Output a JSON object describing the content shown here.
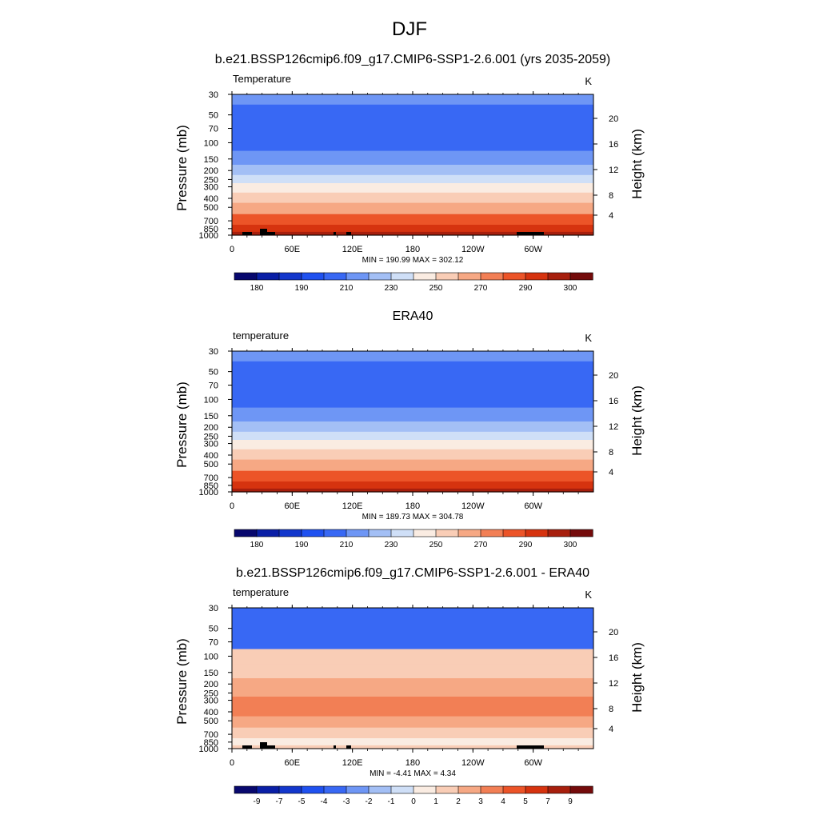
{
  "figure_title": "DJF",
  "chart_data": [
    {
      "type": "heatmap",
      "title": "b.e21.BSSP126cmip6.f09_g17.CMIP6-SSP1-2.6.001 (yrs 2035-2059)",
      "left_string": "Temperature",
      "units": "K",
      "ylabel": "Pressure (mb)",
      "ylabel_right": "Height (km)",
      "yticks": [
        "30",
        "50",
        "70",
        "100",
        "150",
        "200",
        "250",
        "300",
        "400",
        "500",
        "700",
        "850",
        "1000"
      ],
      "xticks": [
        "0",
        "60E",
        "120E",
        "180",
        "120W",
        "60W"
      ],
      "right_ticks": [
        "20",
        "16",
        "12",
        "8",
        "4"
      ],
      "stats": "MIN = 190.99  MAX = 302.12",
      "colorbar_labels": [
        "180",
        "190",
        "210",
        "230",
        "250",
        "270",
        "290",
        "300"
      ],
      "profile": [
        {
          "p": 30,
          "level": 210
        },
        {
          "p": 50,
          "level": 200
        },
        {
          "p": 70,
          "level": 200
        },
        {
          "p": 100,
          "level": 200
        },
        {
          "p": 150,
          "level": 210
        },
        {
          "p": 200,
          "level": 220
        },
        {
          "p": 250,
          "level": 230
        },
        {
          "p": 300,
          "level": 240
        },
        {
          "p": 400,
          "level": 255
        },
        {
          "p": 500,
          "level": 265
        },
        {
          "p": 700,
          "level": 280
        },
        {
          "p": 850,
          "level": 290
        },
        {
          "p": 1000,
          "level": 295
        }
      ]
    },
    {
      "type": "heatmap",
      "title": "ERA40",
      "left_string": "temperature",
      "units": "K",
      "ylabel": "Pressure (mb)",
      "ylabel_right": "Height (km)",
      "yticks": [
        "30",
        "50",
        "70",
        "100",
        "150",
        "200",
        "250",
        "300",
        "400",
        "500",
        "700",
        "850",
        "1000"
      ],
      "xticks": [
        "0",
        "60E",
        "120E",
        "180",
        "120W",
        "60W"
      ],
      "right_ticks": [
        "20",
        "16",
        "12",
        "8",
        "4"
      ],
      "stats": "MIN = 189.73  MAX = 304.78",
      "colorbar_labels": [
        "180",
        "190",
        "210",
        "230",
        "250",
        "270",
        "290",
        "300"
      ],
      "profile": [
        {
          "p": 30,
          "level": 210
        },
        {
          "p": 50,
          "level": 200
        },
        {
          "p": 70,
          "level": 200
        },
        {
          "p": 100,
          "level": 200
        },
        {
          "p": 150,
          "level": 210
        },
        {
          "p": 200,
          "level": 220
        },
        {
          "p": 250,
          "level": 230
        },
        {
          "p": 300,
          "level": 240
        },
        {
          "p": 400,
          "level": 255
        },
        {
          "p": 500,
          "level": 265
        },
        {
          "p": 700,
          "level": 280
        },
        {
          "p": 850,
          "level": 290
        },
        {
          "p": 1000,
          "level": 295
        }
      ]
    },
    {
      "type": "heatmap",
      "title": "b.e21.BSSP126cmip6.f09_g17.CMIP6-SSP1-2.6.001 - ERA40",
      "left_string": "temperature",
      "units": "K",
      "ylabel": "Pressure (mb)",
      "ylabel_right": "Height (km)",
      "yticks": [
        "30",
        "50",
        "70",
        "100",
        "150",
        "200",
        "250",
        "300",
        "400",
        "500",
        "700",
        "850",
        "1000"
      ],
      "xticks": [
        "0",
        "60E",
        "120E",
        "180",
        "120W",
        "60W"
      ],
      "right_ticks": [
        "20",
        "16",
        "12",
        "8",
        "4"
      ],
      "stats": "MIN =  -4.41  MAX =   4.34",
      "colorbar_labels": [
        "-9",
        "-7",
        "-5",
        "-4",
        "-3",
        "-2",
        "-1",
        "0",
        "1",
        "2",
        "3",
        "4",
        "5",
        "7",
        "9"
      ],
      "profile": [
        {
          "p": 30,
          "level": -4
        },
        {
          "p": 50,
          "level": -4
        },
        {
          "p": 70,
          "level": -4
        },
        {
          "p": 100,
          "level": 1
        },
        {
          "p": 150,
          "level": 1
        },
        {
          "p": 200,
          "level": 2
        },
        {
          "p": 250,
          "level": 2
        },
        {
          "p": 300,
          "level": 3
        },
        {
          "p": 400,
          "level": 3
        },
        {
          "p": 500,
          "level": 2
        },
        {
          "p": 700,
          "level": 1
        },
        {
          "p": 850,
          "level": 0
        },
        {
          "p": 1000,
          "level": 1
        }
      ]
    }
  ],
  "palettes": {
    "temperature": [
      "#08086e",
      "#0a1fa6",
      "#1337cc",
      "#1f51f0",
      "#3868f4",
      "#6e96f5",
      "#a3bff5",
      "#cfdff7",
      "#faece2",
      "#f9cdb6",
      "#f6a884",
      "#f27f55",
      "#ec5428",
      "#d6330f",
      "#a71f0d",
      "#740b0b"
    ],
    "difference": [
      "#08086e",
      "#0a1fa6",
      "#1337cc",
      "#1f51f0",
      "#3868f4",
      "#6e96f5",
      "#a3bff5",
      "#cfdff7",
      "#faece2",
      "#f9cdb6",
      "#f6a884",
      "#f27f55",
      "#ec5428",
      "#d6330f",
      "#a71f0d",
      "#740b0b"
    ]
  }
}
